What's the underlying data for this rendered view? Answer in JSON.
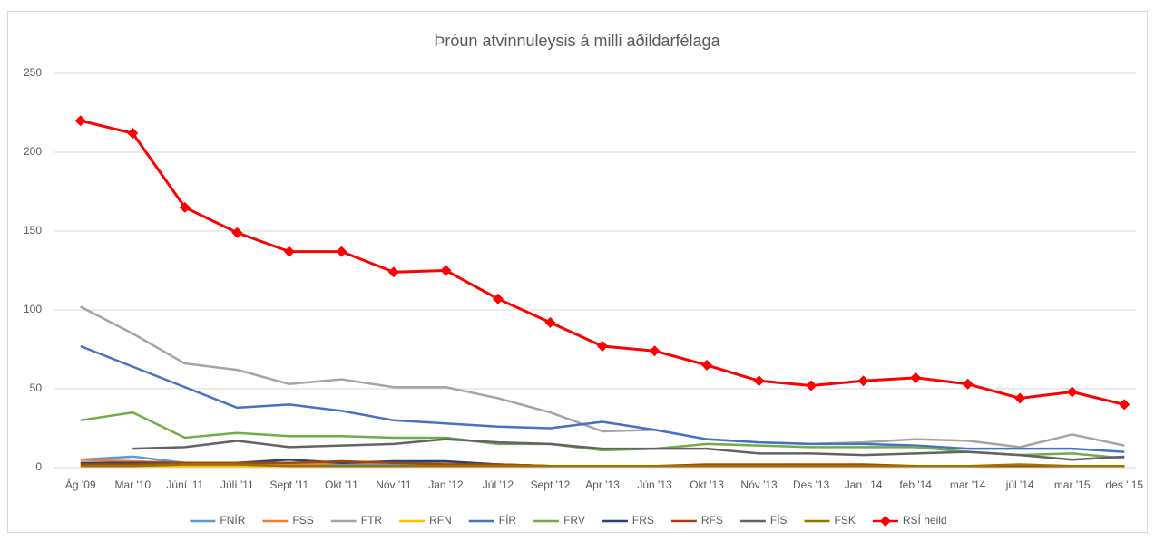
{
  "chart_data": {
    "type": "line",
    "title": "Þróun atvinnuleysis á milli aðildarfélaga",
    "categories": [
      "Ág '09",
      "Mar '10",
      "Júní '11",
      "Júlí '11",
      "Sept '11",
      "Okt '11",
      "Nóv '11",
      "Jan '12",
      "Júl '12",
      "Sept '12",
      "Apr '13",
      "Jún '13",
      "Okt '13",
      "Nóv '13",
      "Des '13",
      "Jan ' 14",
      "feb '14",
      "mar '14",
      "júl '14",
      "mar '15",
      "des ' 15"
    ],
    "ylim": [
      0,
      250
    ],
    "yticks": [
      0,
      50,
      100,
      150,
      200,
      250
    ],
    "grid": true,
    "legend": "bottom",
    "series": [
      {
        "name": "FNÍR",
        "color": "#5b9bd5",
        "values": [
          5,
          7,
          3,
          3,
          3,
          2,
          2,
          2,
          1,
          1,
          1,
          1,
          1,
          1,
          1,
          1,
          1,
          1,
          1,
          1,
          1
        ]
      },
      {
        "name": "FSS",
        "color": "#ed7d31",
        "values": [
          5,
          4,
          3,
          3,
          2,
          3,
          3,
          3,
          2,
          1,
          1,
          1,
          1,
          1,
          1,
          1,
          1,
          1,
          1,
          1,
          1
        ]
      },
      {
        "name": "FTR",
        "color": "#a5a5a5",
        "values": [
          102,
          85,
          66,
          62,
          53,
          56,
          51,
          51,
          44,
          35,
          23,
          24,
          18,
          16,
          15,
          16,
          18,
          17,
          13,
          21,
          14
        ]
      },
      {
        "name": "RFN",
        "color": "#ffc000",
        "values": [
          1,
          1,
          1,
          1,
          1,
          1,
          1,
          1,
          1,
          1,
          1,
          1,
          1,
          1,
          1,
          1,
          1,
          1,
          1,
          1,
          1
        ]
      },
      {
        "name": "FÍR",
        "color": "#4472c4",
        "values": [
          77,
          64,
          51,
          38,
          40,
          36,
          30,
          28,
          26,
          25,
          29,
          24,
          18,
          16,
          15,
          15,
          14,
          12,
          12,
          12,
          10
        ]
      },
      {
        "name": "FRV",
        "color": "#70ad47",
        "values": [
          30,
          35,
          19,
          22,
          20,
          20,
          19,
          19,
          15,
          15,
          11,
          12,
          15,
          14,
          13,
          13,
          13,
          10,
          8,
          9,
          6
        ]
      },
      {
        "name": "FRS",
        "color": "#264478",
        "values": [
          3,
          3,
          3,
          3,
          5,
          3,
          4,
          4,
          2,
          1,
          1,
          1,
          1,
          1,
          1,
          1,
          1,
          1,
          1,
          1,
          1
        ]
      },
      {
        "name": "RFS",
        "color": "#9e480e",
        "values": [
          2,
          2,
          3,
          3,
          3,
          4,
          3,
          2,
          2,
          1,
          1,
          1,
          2,
          2,
          2,
          2,
          1,
          1,
          1,
          1,
          1
        ]
      },
      {
        "name": "FÍS",
        "color": "#636363",
        "values": [
          null,
          12,
          13,
          17,
          13,
          14,
          15,
          18,
          16,
          15,
          12,
          12,
          12,
          9,
          9,
          8,
          9,
          10,
          8,
          5,
          7
        ]
      },
      {
        "name": "FSK",
        "color": "#997300",
        "values": [
          1,
          1,
          2,
          2,
          1,
          1,
          1,
          1,
          1,
          1,
          1,
          1,
          1,
          1,
          1,
          1,
          1,
          1,
          2,
          1,
          1
        ]
      },
      {
        "name": "RSÍ heild",
        "color": "#ff0000",
        "marker": "diamond",
        "values": [
          220,
          212,
          165,
          149,
          137,
          137,
          124,
          125,
          107,
          92,
          77,
          74,
          65,
          55,
          52,
          55,
          57,
          53,
          44,
          48,
          40
        ]
      }
    ]
  }
}
